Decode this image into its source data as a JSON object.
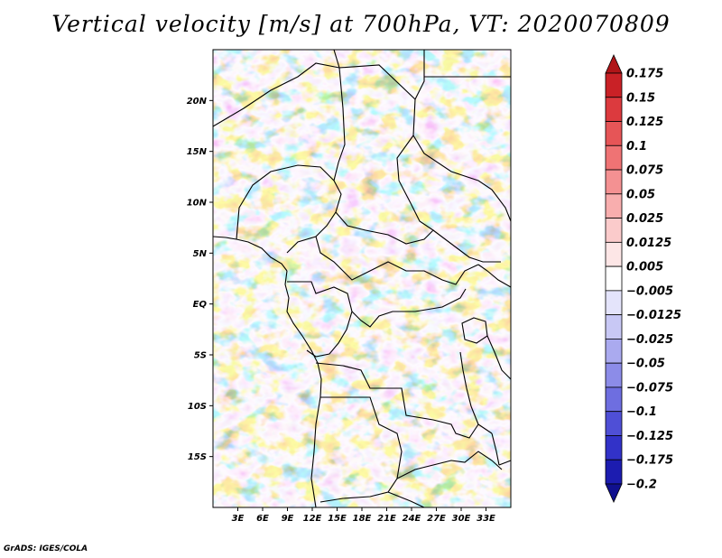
{
  "title": "Vertical velocity [m/s] at 700hPa, VT: 2020070809",
  "credit": "GrADS: IGES/COLA",
  "map": {
    "lon_range": [
      0,
      36
    ],
    "lat_range": [
      -20,
      25
    ],
    "x_ticks": [
      {
        "label": "3E",
        "value": 3
      },
      {
        "label": "6E",
        "value": 6
      },
      {
        "label": "9E",
        "value": 9
      },
      {
        "label": "12E",
        "value": 12
      },
      {
        "label": "15E",
        "value": 15
      },
      {
        "label": "18E",
        "value": 18
      },
      {
        "label": "21E",
        "value": 21
      },
      {
        "label": "24E",
        "value": 24
      },
      {
        "label": "27E",
        "value": 27
      },
      {
        "label": "30E",
        "value": 30
      },
      {
        "label": "33E",
        "value": 33
      }
    ],
    "y_ticks": [
      {
        "label": "20N",
        "value": 20
      },
      {
        "label": "15N",
        "value": 15
      },
      {
        "label": "10N",
        "value": 10
      },
      {
        "label": "5N",
        "value": 5
      },
      {
        "label": "EQ",
        "value": 0
      },
      {
        "label": "5S",
        "value": -5
      },
      {
        "label": "10S",
        "value": -10
      },
      {
        "label": "15S",
        "value": -15
      }
    ]
  },
  "colorbar": {
    "levels": [
      "0.175",
      "0.15",
      "0.125",
      "0.1",
      "0.075",
      "0.05",
      "0.025",
      "0.0125",
      "0.005",
      "-0.005",
      "-0.0125",
      "-0.025",
      "-0.05",
      "-0.075",
      "-0.1",
      "-0.125",
      "-0.175",
      "-0.2"
    ],
    "colors": [
      "#b01518",
      "#c92126",
      "#dc3a3e",
      "#e65557",
      "#ef7374",
      "#f49192",
      "#f8aeae",
      "#fbcbcb",
      "#fde6e6",
      "#ffffff",
      "#e4e4fb",
      "#c8c8f5",
      "#aaaaef",
      "#8c8ce8",
      "#6e6ee0",
      "#4f4fd6",
      "#3232c8",
      "#1c1cb0",
      "#10108f"
    ]
  }
}
